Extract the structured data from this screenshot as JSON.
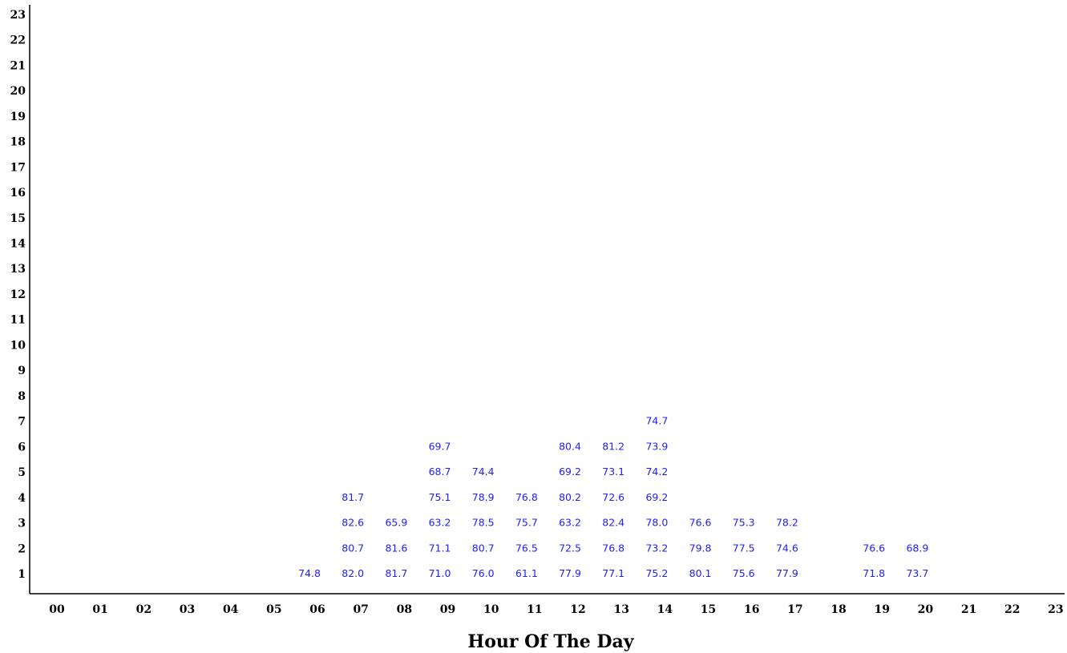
{
  "chart_data": {
    "type": "table",
    "title": "",
    "xlabel": "Hour Of The Day",
    "ylabel": "",
    "x_categories": [
      "00",
      "01",
      "02",
      "03",
      "04",
      "05",
      "06",
      "07",
      "08",
      "09",
      "10",
      "11",
      "12",
      "13",
      "14",
      "15",
      "16",
      "17",
      "18",
      "19",
      "20",
      "21",
      "22",
      "23"
    ],
    "y_categories": [
      "1",
      "2",
      "3",
      "4",
      "5",
      "6",
      "7",
      "8",
      "9",
      "10",
      "11",
      "12",
      "13",
      "14",
      "15",
      "16",
      "17",
      "18",
      "19",
      "20",
      "21",
      "22",
      "23"
    ],
    "value_color": "#2020ff",
    "cells": [
      {
        "x": "06",
        "y": "1",
        "value": "74.8"
      },
      {
        "x": "07",
        "y": "1",
        "value": "82.0"
      },
      {
        "x": "07",
        "y": "2",
        "value": "80.7"
      },
      {
        "x": "07",
        "y": "3",
        "value": "82.6"
      },
      {
        "x": "07",
        "y": "4",
        "value": "81.7"
      },
      {
        "x": "08",
        "y": "1",
        "value": "81.7"
      },
      {
        "x": "08",
        "y": "2",
        "value": "81.6"
      },
      {
        "x": "08",
        "y": "3",
        "value": "65.9"
      },
      {
        "x": "09",
        "y": "1",
        "value": "71.0"
      },
      {
        "x": "09",
        "y": "2",
        "value": "71.1"
      },
      {
        "x": "09",
        "y": "3",
        "value": "63.2"
      },
      {
        "x": "09",
        "y": "4",
        "value": "75.1"
      },
      {
        "x": "09",
        "y": "5",
        "value": "68.7"
      },
      {
        "x": "09",
        "y": "6",
        "value": "69.7"
      },
      {
        "x": "10",
        "y": "1",
        "value": "76.0"
      },
      {
        "x": "10",
        "y": "2",
        "value": "80.7"
      },
      {
        "x": "10",
        "y": "3",
        "value": "78.5"
      },
      {
        "x": "10",
        "y": "4",
        "value": "78.9"
      },
      {
        "x": "10",
        "y": "5",
        "value": "74.4"
      },
      {
        "x": "11",
        "y": "1",
        "value": "61.1"
      },
      {
        "x": "11",
        "y": "2",
        "value": "76.5"
      },
      {
        "x": "11",
        "y": "3",
        "value": "75.7"
      },
      {
        "x": "11",
        "y": "4",
        "value": "76.8"
      },
      {
        "x": "12",
        "y": "1",
        "value": "77.9"
      },
      {
        "x": "12",
        "y": "2",
        "value": "72.5"
      },
      {
        "x": "12",
        "y": "3",
        "value": "63.2"
      },
      {
        "x": "12",
        "y": "4",
        "value": "80.2"
      },
      {
        "x": "12",
        "y": "5",
        "value": "69.2"
      },
      {
        "x": "12",
        "y": "6",
        "value": "80.4"
      },
      {
        "x": "13",
        "y": "1",
        "value": "77.1"
      },
      {
        "x": "13",
        "y": "2",
        "value": "76.8"
      },
      {
        "x": "13",
        "y": "3",
        "value": "82.4"
      },
      {
        "x": "13",
        "y": "4",
        "value": "72.6"
      },
      {
        "x": "13",
        "y": "5",
        "value": "73.1"
      },
      {
        "x": "13",
        "y": "6",
        "value": "81.2"
      },
      {
        "x": "14",
        "y": "1",
        "value": "75.2"
      },
      {
        "x": "14",
        "y": "2",
        "value": "73.2"
      },
      {
        "x": "14",
        "y": "3",
        "value": "78.0"
      },
      {
        "x": "14",
        "y": "4",
        "value": "69.2"
      },
      {
        "x": "14",
        "y": "5",
        "value": "74.2"
      },
      {
        "x": "14",
        "y": "6",
        "value": "73.9"
      },
      {
        "x": "14",
        "y": "7",
        "value": "74.7"
      },
      {
        "x": "15",
        "y": "1",
        "value": "80.1"
      },
      {
        "x": "15",
        "y": "2",
        "value": "79.8"
      },
      {
        "x": "15",
        "y": "3",
        "value": "76.6"
      },
      {
        "x": "16",
        "y": "1",
        "value": "75.6"
      },
      {
        "x": "16",
        "y": "2",
        "value": "77.5"
      },
      {
        "x": "16",
        "y": "3",
        "value": "75.3"
      },
      {
        "x": "17",
        "y": "1",
        "value": "77.9"
      },
      {
        "x": "17",
        "y": "2",
        "value": "74.6"
      },
      {
        "x": "17",
        "y": "3",
        "value": "78.2"
      },
      {
        "x": "19",
        "y": "1",
        "value": "71.8"
      },
      {
        "x": "19",
        "y": "2",
        "value": "76.6"
      },
      {
        "x": "20",
        "y": "1",
        "value": "73.7"
      },
      {
        "x": "20",
        "y": "2",
        "value": "68.9"
      }
    ]
  }
}
